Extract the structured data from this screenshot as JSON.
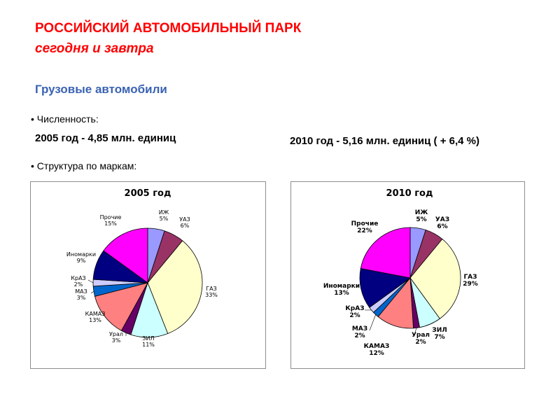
{
  "header": {
    "title_line1": "РОССИЙСКИЙ  АВТОМОБИЛЬНЫЙ ПАРК",
    "title_line2": "сегодня  и  завтра",
    "section": "Грузовые  автомобили"
  },
  "bullets": {
    "count_label": "• Численность:",
    "count_2005": "2005 год -  4,85 млн. единиц",
    "count_2010": "2010 год -  5,16 млн. единиц  ( + 6,4 %)",
    "structure_label": "• Структура по маркам:"
  },
  "chart_data": [
    {
      "type": "pie",
      "title": "2005 год",
      "slices": [
        {
          "label": "ИЖ",
          "value": 5,
          "color": "#9999ff"
        },
        {
          "label": "УАЗ",
          "value": 6,
          "color": "#993366"
        },
        {
          "label": "ГАЗ",
          "value": 33,
          "color": "#ffffcc"
        },
        {
          "label": "ЗИЛ",
          "value": 11,
          "color": "#ccffff"
        },
        {
          "label": "Урал",
          "value": 3,
          "color": "#660066"
        },
        {
          "label": "КАМАЗ",
          "value": 13,
          "color": "#ff8080"
        },
        {
          "label": "МАЗ",
          "value": 3,
          "color": "#0066cc"
        },
        {
          "label": "КрАЗ",
          "value": 2,
          "color": "#ccccff"
        },
        {
          "label": "Иномарки",
          "value": 9,
          "color": "#000080"
        },
        {
          "label": "Прочие",
          "value": 15,
          "color": "#ff00ff"
        }
      ]
    },
    {
      "type": "pie",
      "title": "2010 год",
      "slices": [
        {
          "label": "ИЖ",
          "value": 5,
          "color": "#9999ff"
        },
        {
          "label": "УАЗ",
          "value": 6,
          "color": "#993366"
        },
        {
          "label": "ГАЗ",
          "value": 29,
          "color": "#ffffcc"
        },
        {
          "label": "ЗИЛ",
          "value": 7,
          "color": "#ccffff"
        },
        {
          "label": "Урал",
          "value": 2,
          "color": "#660066"
        },
        {
          "label": "КАМАЗ",
          "value": 12,
          "color": "#ff8080"
        },
        {
          "label": "МАЗ",
          "value": 2,
          "color": "#0066cc"
        },
        {
          "label": "КрАЗ",
          "value": 2,
          "color": "#ccccff"
        },
        {
          "label": "Иномарки",
          "value": 13,
          "color": "#000080"
        },
        {
          "label": "Прочие",
          "value": 22,
          "color": "#ff00ff"
        }
      ]
    }
  ]
}
